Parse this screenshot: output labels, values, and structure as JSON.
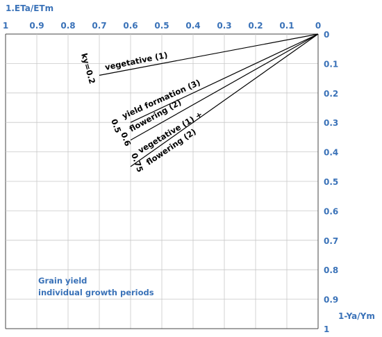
{
  "chart_data": {
    "type": "line",
    "title": "",
    "xlabel": "1.ETa/ETm",
    "ylabel": "1-Ya/Ym",
    "x_ticks": [
      "1",
      "0.9",
      "0.8",
      "0.7",
      "0.6",
      "0.5",
      "0.4",
      "0.3",
      "0.2",
      "0.1",
      "0"
    ],
    "y_ticks": [
      "0",
      "0.1",
      "0.2",
      "0.3",
      "0.4",
      "0.5",
      "0.6",
      "0.7",
      "0.8",
      "0.9",
      "1"
    ],
    "xlim": [
      1,
      0
    ],
    "ylim": [
      0,
      1
    ],
    "grid": true,
    "series": [
      {
        "ky": "ky=0.2",
        "name": "vegetative (1)",
        "x": [
          0,
          0.7
        ],
        "y": [
          0,
          0.14
        ]
      },
      {
        "ky": "0.5",
        "name": "yield formation (3)",
        "x": [
          0,
          0.6
        ],
        "y": [
          0,
          0.3
        ]
      },
      {
        "ky": "0.6",
        "name": "flowering (2)",
        "x": [
          0,
          0.6
        ],
        "y": [
          0,
          0.36
        ]
      },
      {
        "ky": "0.75",
        "name": "vegetative (1) +",
        "name2": "flowering (2)",
        "x": [
          0,
          0.6
        ],
        "y": [
          0,
          0.45
        ]
      }
    ],
    "annotation": {
      "line1": "Grain yield",
      "line2": "individual growth periods"
    }
  }
}
